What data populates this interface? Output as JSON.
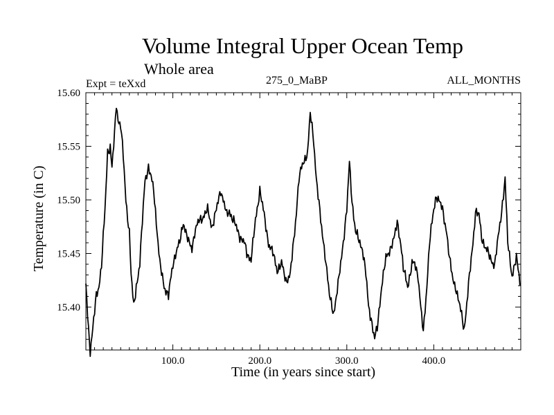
{
  "chart_data": {
    "type": "line",
    "title": "Volume Integral Upper Ocean Temp",
    "subtitle": "Whole area",
    "experiment_label": "Expt = teXxd",
    "center_label": "275_0_MaBP",
    "right_label": "ALL_MONTHS",
    "xlabel": "Time (in years since start)",
    "ylabel": "Temperature (in C)",
    "xlim": [
      0,
      500
    ],
    "ylim": [
      15.36,
      15.6
    ],
    "x_ticks": [
      100,
      200,
      300,
      400
    ],
    "x_tick_labels": [
      "100.0",
      "200.0",
      "300.0",
      "400.0"
    ],
    "y_ticks": [
      15.4,
      15.45,
      15.5,
      15.55,
      15.6
    ],
    "y_tick_labels": [
      "15.40",
      "15.45",
      "15.50",
      "15.55",
      "15.60"
    ],
    "grid": false,
    "series": [
      {
        "name": "Temperature",
        "color": "#000000",
        "x": [
          0,
          3,
          5,
          8,
          12,
          15,
          18,
          22,
          25,
          28,
          30,
          33,
          35,
          37,
          40,
          43,
          46,
          50,
          52,
          55,
          58,
          62,
          65,
          68,
          72,
          75,
          78,
          82,
          85,
          90,
          95,
          100,
          103,
          108,
          112,
          115,
          118,
          122,
          125,
          130,
          135,
          140,
          145,
          150,
          155,
          158,
          162,
          165,
          170,
          175,
          178,
          182,
          185,
          190,
          195,
          200,
          205,
          210,
          215,
          220,
          225,
          230,
          235,
          240,
          245,
          250,
          255,
          258,
          262,
          265,
          270,
          275,
          280,
          285,
          290,
          295,
          300,
          303,
          306,
          310,
          315,
          318,
          322,
          325,
          328,
          332,
          335,
          340,
          345,
          350,
          355,
          358,
          362,
          365,
          370,
          375,
          378,
          382,
          385,
          388,
          392,
          395,
          400,
          403,
          406,
          410,
          415,
          418,
          422,
          425,
          430,
          435,
          440,
          445,
          448,
          452,
          455,
          460,
          465,
          470,
          475,
          478,
          482,
          485,
          490,
          495,
          500
        ],
        "values": [
          15.42,
          15.38,
          15.36,
          15.38,
          15.41,
          15.42,
          15.44,
          15.49,
          15.545,
          15.55,
          15.53,
          15.56,
          15.59,
          15.575,
          15.57,
          15.54,
          15.5,
          15.47,
          15.43,
          15.4,
          15.42,
          15.44,
          15.48,
          15.52,
          15.53,
          15.52,
          15.51,
          15.47,
          15.44,
          15.42,
          15.41,
          15.44,
          15.45,
          15.46,
          15.48,
          15.47,
          15.46,
          15.455,
          15.47,
          15.48,
          15.485,
          15.49,
          15.475,
          15.49,
          15.51,
          15.5,
          15.485,
          15.49,
          15.48,
          15.47,
          15.465,
          15.46,
          15.45,
          15.445,
          15.48,
          15.51,
          15.485,
          15.46,
          15.45,
          15.435,
          15.44,
          15.425,
          15.43,
          15.47,
          15.52,
          15.535,
          15.545,
          15.58,
          15.555,
          15.52,
          15.48,
          15.45,
          15.41,
          15.395,
          15.42,
          15.455,
          15.49,
          15.535,
          15.5,
          15.47,
          15.46,
          15.455,
          15.43,
          15.4,
          15.39,
          15.37,
          15.38,
          15.42,
          15.445,
          15.455,
          15.465,
          15.48,
          15.46,
          15.435,
          15.42,
          15.44,
          15.44,
          15.43,
          15.4,
          15.375,
          15.42,
          15.46,
          15.49,
          15.505,
          15.5,
          15.49,
          15.47,
          15.445,
          15.425,
          15.42,
          15.4,
          15.38,
          15.42,
          15.46,
          15.49,
          15.485,
          15.465,
          15.455,
          15.445,
          15.44,
          15.47,
          15.49,
          15.52,
          15.46,
          15.43,
          15.445,
          15.42
        ]
      }
    ]
  }
}
